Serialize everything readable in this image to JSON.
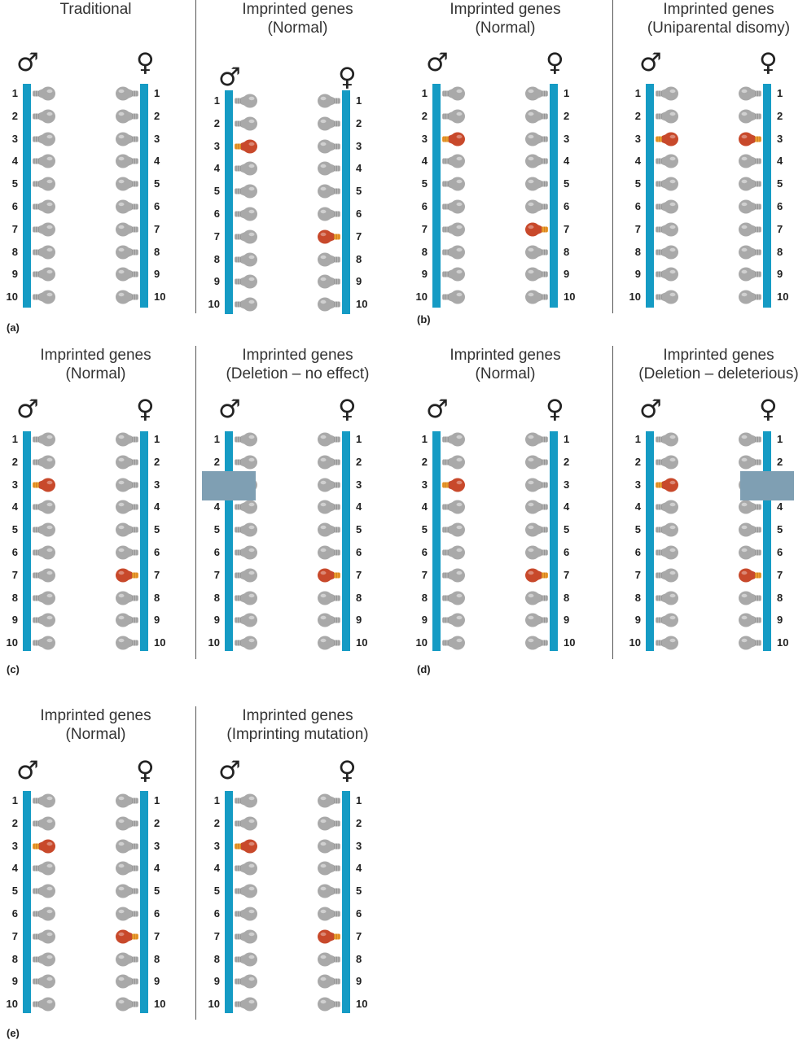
{
  "colors": {
    "chromosome": "#159bc4",
    "bulb_off": "#a9a9a9",
    "bulb_on": "#c8492b",
    "bulb_on_base": "#f0a030",
    "deletion_box": "#7f9fb3"
  },
  "symbols": {
    "male": "♂",
    "female": "♀"
  },
  "gene_numbers": [
    "1",
    "2",
    "3",
    "4",
    "5",
    "6",
    "7",
    "8",
    "9",
    "10"
  ],
  "subfigure_labels": [
    "(a)",
    "(b)",
    "(c)",
    "(d)",
    "(e)"
  ],
  "panels": [
    {
      "id": "a-left",
      "title_lines": [
        "Traditional"
      ],
      "male_active": [],
      "female_active": [],
      "deletion": null
    },
    {
      "id": "a-right",
      "title_lines": [
        "Imprinted genes",
        "(Normal)"
      ],
      "male_active": [
        3
      ],
      "female_active": [
        7
      ],
      "deletion": null
    },
    {
      "id": "b-left",
      "title_lines": [
        "Imprinted genes",
        "(Normal)"
      ],
      "male_active": [
        3
      ],
      "female_active": [
        7
      ],
      "deletion": null
    },
    {
      "id": "b-right",
      "title_lines": [
        "Imprinted genes",
        "(Uniparental disomy)"
      ],
      "male_active": [
        3
      ],
      "female_active": [
        3
      ],
      "deletion": null
    },
    {
      "id": "c-left",
      "title_lines": [
        "Imprinted genes",
        "(Normal)"
      ],
      "male_active": [
        3
      ],
      "female_active": [
        7
      ],
      "deletion": null
    },
    {
      "id": "c-right",
      "title_lines": [
        "Imprinted genes",
        "(Deletion – no effect)"
      ],
      "male_active": [],
      "female_active": [
        7
      ],
      "deletion": "male"
    },
    {
      "id": "d-left",
      "title_lines": [
        "Imprinted genes",
        "(Normal)"
      ],
      "male_active": [
        3
      ],
      "female_active": [
        7
      ],
      "deletion": null
    },
    {
      "id": "d-right",
      "title_lines": [
        "Imprinted genes",
        "(Deletion – deleterious)"
      ],
      "male_active": [
        3
      ],
      "female_active": [
        7
      ],
      "deletion": "female"
    },
    {
      "id": "e-left",
      "title_lines": [
        "Imprinted genes",
        "(Normal)"
      ],
      "male_active": [
        3
      ],
      "female_active": [
        7
      ],
      "deletion": null
    },
    {
      "id": "e-right",
      "title_lines": [
        "Imprinted genes",
        "(Imprinting mutation)"
      ],
      "male_active": [
        3
      ],
      "female_active": [
        7
      ],
      "deletion": null
    }
  ]
}
